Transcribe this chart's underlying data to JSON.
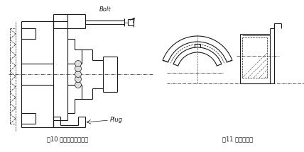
{
  "bg_color": "#ffffff",
  "line_color": "#1a1a1a",
  "dashed_color": "#444444",
  "caption_left": "图10 使用螺丝拆卸外圈",
  "caption_right": "图11 拆卸用切口",
  "bolt_label": "Bolt",
  "plug_label": "Plug",
  "fig_width": 4.28,
  "fig_height": 2.15,
  "dpi": 100
}
